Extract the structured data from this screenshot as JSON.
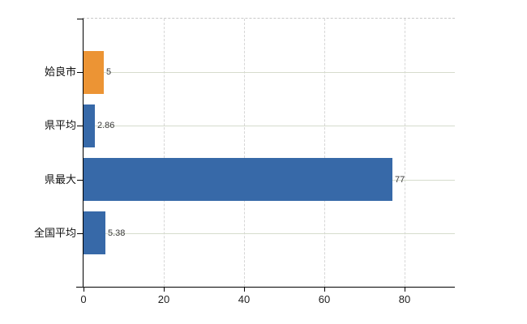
{
  "chart_data": {
    "type": "bar",
    "orientation": "horizontal",
    "title": "",
    "categories": [
      "姶良市",
      "県平均",
      "県最大",
      "全国平均"
    ],
    "values": [
      5,
      2.86,
      77,
      5.38
    ],
    "value_labels": [
      "5",
      "2.86",
      "77",
      "5.38"
    ],
    "bar_colors": [
      "#ec9434",
      "#3769a8",
      "#3769a8",
      "#3769a8"
    ],
    "x_ticks": [
      0,
      20,
      40,
      60,
      80
    ],
    "x_tick_labels": [
      "0",
      "20",
      "40",
      "60",
      "80"
    ],
    "xlim": [
      0,
      92.5
    ],
    "grid": true,
    "legend": false,
    "bar_thickness_fraction": 0.8
  },
  "colors": {
    "bar_orange": "#ec9434",
    "bar_blue": "#3769a8",
    "grid_horizontal": "#d6dccd",
    "grid_vertical": "#d6d6d6",
    "plot_top_border": "#c9c9c9",
    "axis": "#000000",
    "value_label_text": "#3a3a3a",
    "tick_label_text": "#1f1f1f",
    "category_label_text": "#111111",
    "background": "#ffffff"
  }
}
